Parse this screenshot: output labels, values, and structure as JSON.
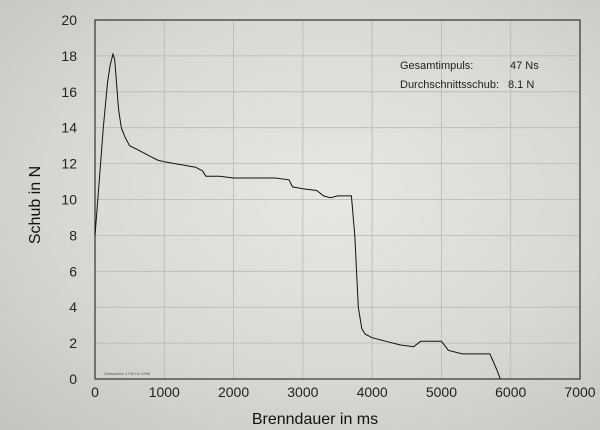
{
  "chart_data": {
    "type": "line",
    "xlabel": "Brenndauer in ms",
    "ylabel": "Schub in N",
    "xlim": [
      0,
      7000
    ],
    "ylim": [
      0,
      20
    ],
    "xticks": [
      0,
      1000,
      2000,
      3000,
      4000,
      5000,
      6000,
      7000
    ],
    "yticks": [
      0,
      2,
      4,
      6,
      8,
      10,
      12,
      14,
      16,
      18,
      20
    ],
    "grid": true,
    "annotations": {
      "impulse_label": "Gesamtimpuls:",
      "impulse_value": "47 Ns",
      "avg_label": "Durchschnittsschub:",
      "avg_value": "8.1 N"
    },
    "footnote": "Zeitstruktur 1790 Hz 1996",
    "series": [
      {
        "x": [
          0,
          60,
          120,
          180,
          220,
          260,
          285,
          310,
          340,
          380,
          430,
          500,
          600,
          700,
          800,
          900,
          1000,
          1150,
          1300,
          1450,
          1550,
          1600,
          1800,
          2000,
          2200,
          2400,
          2600,
          2800,
          2850,
          3000,
          3200,
          3300,
          3400,
          3500,
          3700,
          3750,
          3800,
          3850,
          3900,
          4000,
          4200,
          4400,
          4600,
          4700,
          5000,
          5100,
          5300,
          5500,
          5700,
          5800,
          5850
        ],
        "y": [
          8,
          11,
          14,
          16.5,
          17.5,
          18.1,
          17.8,
          16.5,
          15,
          14,
          13.5,
          13,
          12.8,
          12.6,
          12.4,
          12.2,
          12.1,
          12,
          11.9,
          11.8,
          11.6,
          11.3,
          11.3,
          11.2,
          11.2,
          11.2,
          11.2,
          11.1,
          10.7,
          10.6,
          10.5,
          10.2,
          10.1,
          10.2,
          10.2,
          8,
          4,
          2.8,
          2.5,
          2.3,
          2.1,
          1.9,
          1.8,
          2.1,
          2.1,
          1.6,
          1.4,
          1.4,
          1.4,
          0.5,
          0
        ]
      }
    ]
  }
}
